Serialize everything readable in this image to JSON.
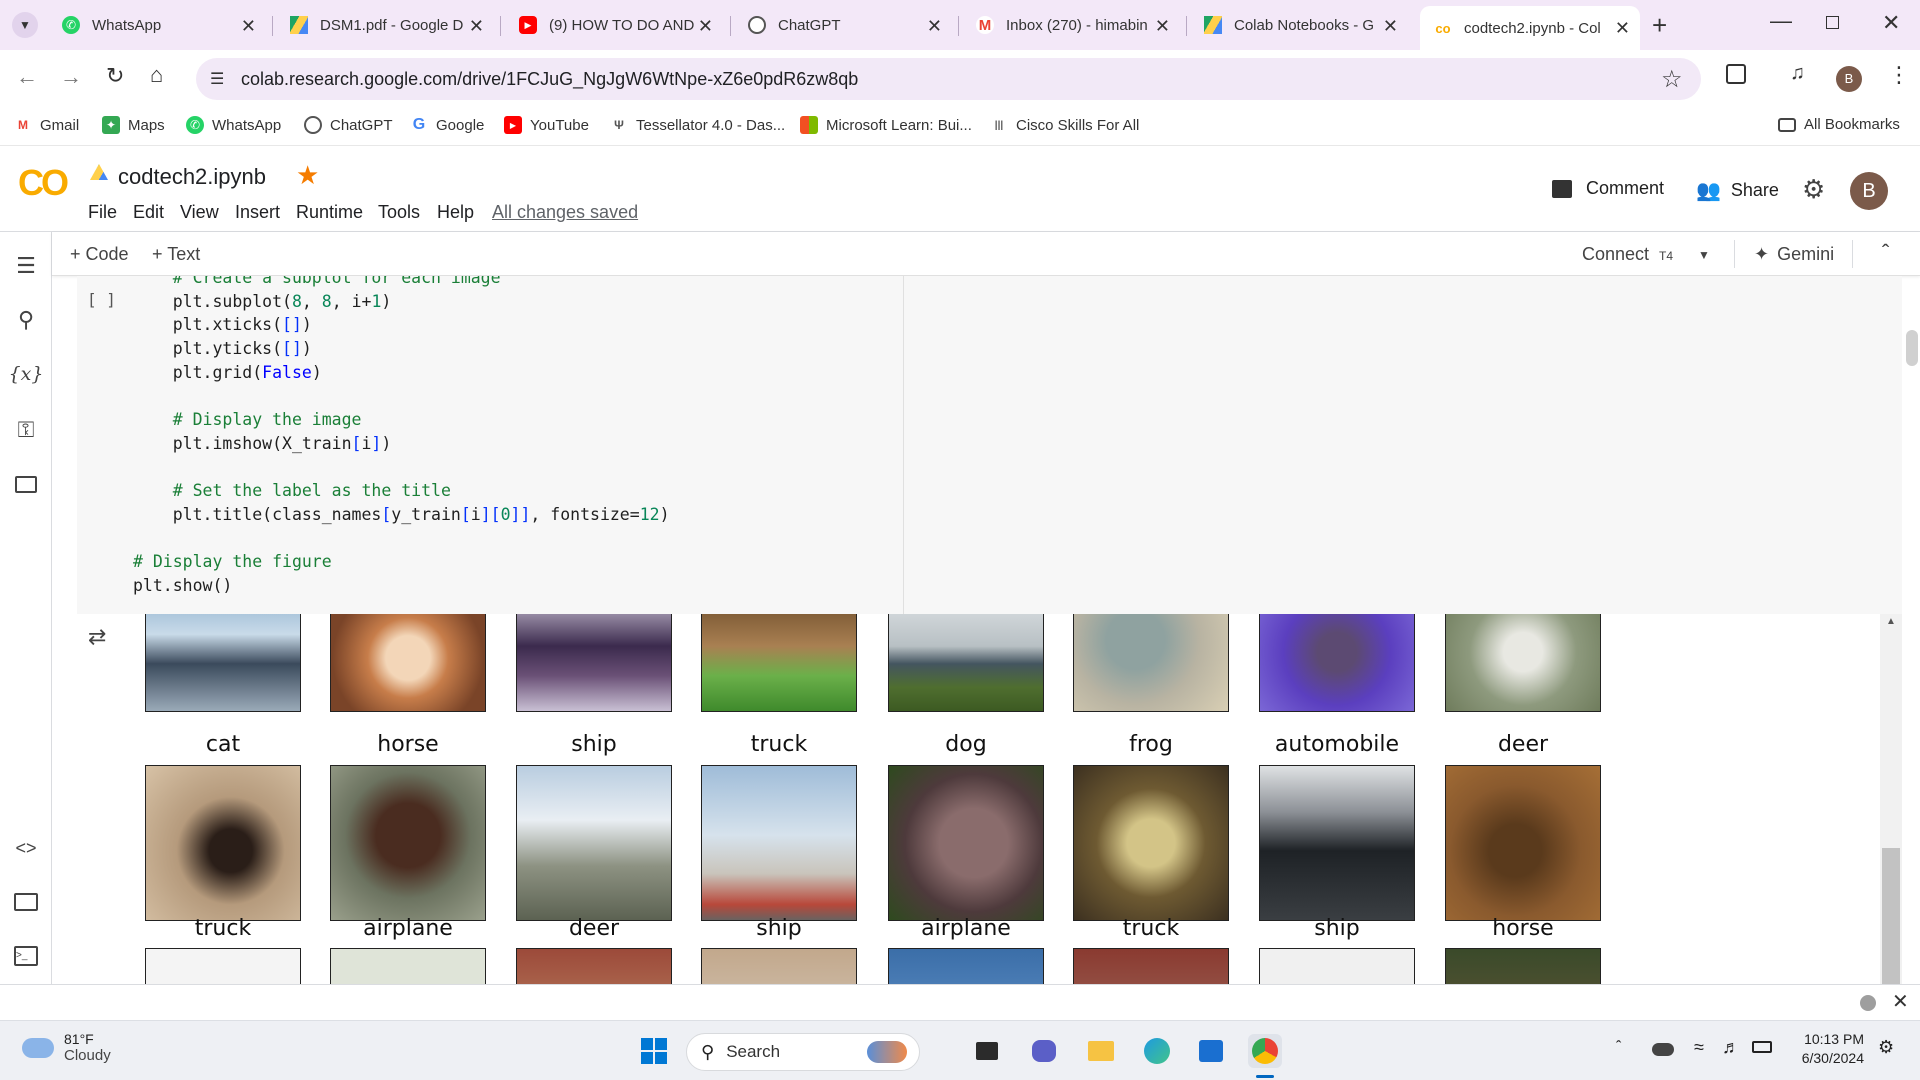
{
  "browser": {
    "tabs": [
      {
        "label": "WhatsApp",
        "icon": "whatsapp-icon"
      },
      {
        "label": "DSM1.pdf - Google D",
        "icon": "drive-icon"
      },
      {
        "label": "(9) HOW TO DO AND",
        "icon": "youtube-icon"
      },
      {
        "label": "ChatGPT",
        "icon": "chatgpt-icon"
      },
      {
        "label": "Inbox (270) - himabin",
        "icon": "gmail-icon"
      },
      {
        "label": "Colab Notebooks - G",
        "icon": "drive-icon"
      },
      {
        "label": "codtech2.ipynb - Col",
        "icon": "colab-icon"
      }
    ],
    "url": "colab.research.google.com/drive/1FCJuG_NgJgW6WtNpe-xZ6e0pdR6zw8qb",
    "profile_initial": "B",
    "bookmarks": [
      "Gmail",
      "Maps",
      "WhatsApp",
      "ChatGPT",
      "Google",
      "YouTube",
      "Tessellator 4.0 - Das...",
      "Microsoft Learn: Bui...",
      "Cisco Skills For All"
    ],
    "all_bookmarks": "All Bookmarks"
  },
  "colab": {
    "logo": "CO",
    "notebook_name": "codtech2.ipynb",
    "menus": [
      "File",
      "Edit",
      "View",
      "Insert",
      "Runtime",
      "Tools",
      "Help"
    ],
    "save_status": "All changes saved",
    "comment": "Comment",
    "share": "Share",
    "avatar": "B",
    "add_code": "+ Code",
    "add_text": "+ Text",
    "connect": "Connect",
    "runtime_badge": "T4",
    "gemini": "Gemini",
    "cell_status": "[ ]"
  },
  "output": {
    "row1_labels": [
      "cat",
      "horse",
      "ship",
      "truck",
      "dog",
      "frog",
      "automobile",
      "deer"
    ],
    "row2_labels": [
      "truck",
      "airplane",
      "deer",
      "ship",
      "airplane",
      "truck",
      "ship",
      "horse"
    ]
  },
  "taskbar": {
    "weather_temp": "81°F",
    "weather_desc": "Cloudy",
    "search": "Search",
    "time": "10:13 PM",
    "date": "6/30/2024"
  }
}
